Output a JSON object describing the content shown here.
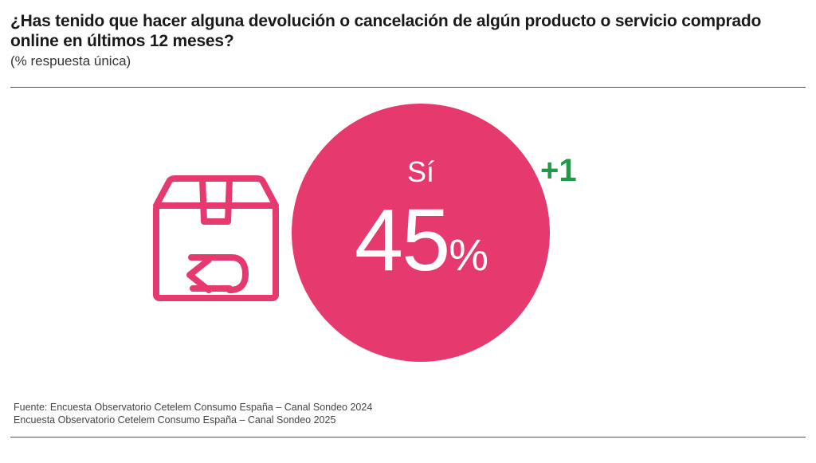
{
  "header": {
    "title": "¿Has tenido que hacer alguna devolución o cancelación de algún producto o servicio comprado online en últimos 12 meses?",
    "subtitle": "(% respuesta única)"
  },
  "chart_data": {
    "type": "single-value",
    "title": "¿Has tenido que hacer alguna devolución o cancelación de algún producto o servicio comprado online en últimos 12 meses?",
    "category": "Sí",
    "value": 45,
    "value_number": "45",
    "unit": "%",
    "change_vs_previous": "+1",
    "colors": {
      "circle": "#e6396e",
      "change": "#1e9a48"
    }
  },
  "icons": {
    "main": "return-box-icon"
  },
  "footer": {
    "source_line_1": "Fuente: Encuesta Observatorio Cetelem Consumo España – Canal Sondeo 2024",
    "source_line_2": "Encuesta Observatorio Cetelem Consumo España – Canal Sondeo 2025"
  }
}
